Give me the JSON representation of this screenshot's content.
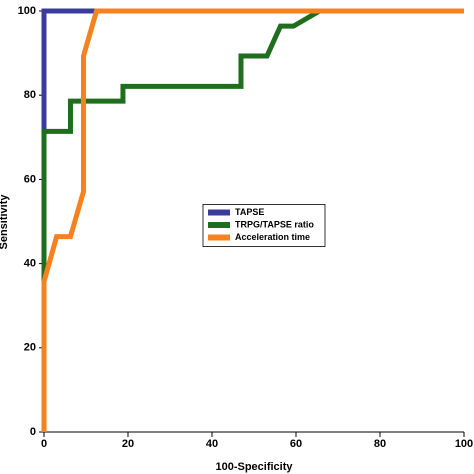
{
  "chart_data": {
    "type": "line",
    "xlabel": "100-Specificity",
    "ylabel": "Sensitivity",
    "xlim": [
      0,
      100
    ],
    "ylim": [
      0,
      100
    ],
    "xticks": [
      0,
      20,
      40,
      60,
      80,
      100
    ],
    "yticks": [
      0,
      20,
      40,
      60,
      80,
      100
    ],
    "legend": "center",
    "series": [
      {
        "name": "TAPSE",
        "color": "#3b3b9c",
        "x": [
          0,
          0,
          100
        ],
        "values": [
          0,
          100,
          100
        ]
      },
      {
        "name": "TRPG/TAPSE ratio",
        "color": "#1e6e1e",
        "x": [
          0,
          0,
          6.3,
          6.3,
          18.8,
          18.8,
          46.9,
          46.9,
          53.1,
          56.3,
          59.4,
          65.6,
          100
        ],
        "values": [
          0,
          71.4,
          71.4,
          78.6,
          78.6,
          82.1,
          82.1,
          89.3,
          89.3,
          96.4,
          96.4,
          100,
          100
        ]
      },
      {
        "name": "Acceleration time",
        "color": "#f5821f",
        "x": [
          0,
          0,
          3,
          6.3,
          9.4,
          9.4,
          12.5,
          100
        ],
        "values": [
          0,
          35.7,
          46.4,
          46.4,
          57.1,
          89.3,
          100,
          100
        ]
      }
    ]
  }
}
